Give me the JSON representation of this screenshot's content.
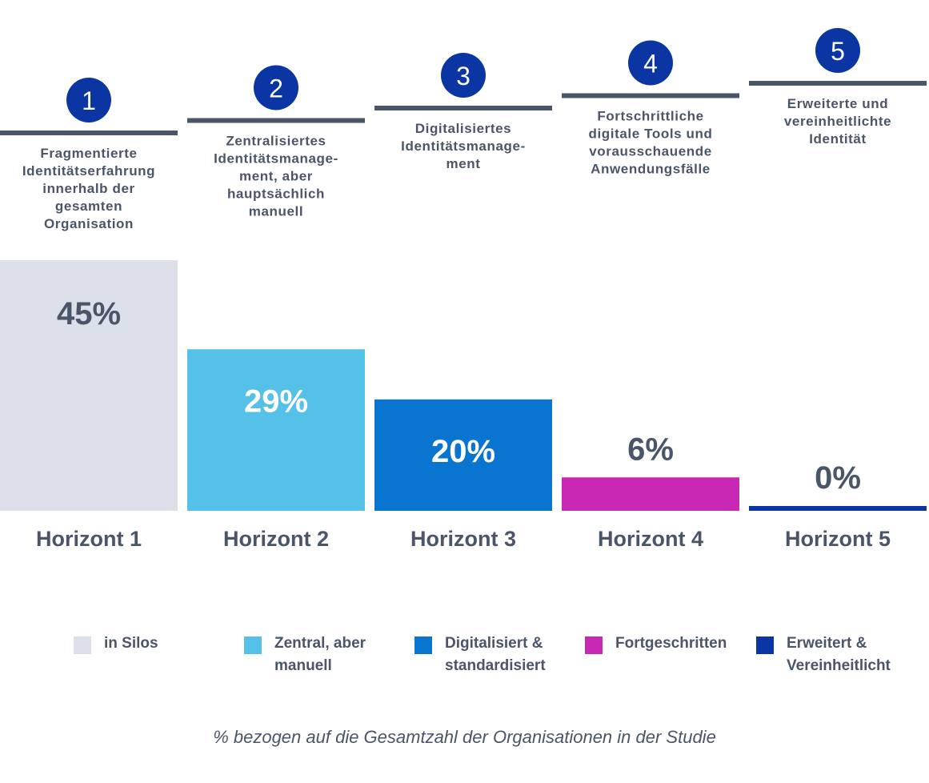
{
  "chart_data": {
    "type": "bar",
    "categories": [
      "Horizont 1",
      "Horizont 2",
      "Horizont 3",
      "Horizont 4",
      "Horizont 5"
    ],
    "values": [
      45,
      29,
      20,
      6,
      0
    ],
    "value_labels": [
      "45%",
      "29%",
      "20%",
      "6%",
      "0%"
    ],
    "ylim": [
      0,
      45
    ],
    "ylabel": "",
    "xlabel": "",
    "steps": [
      {
        "number": "1",
        "description": "Fragmentierte\nIdentitätserfahrung\ninnerhalb der\ngesamten\nOrganisation"
      },
      {
        "number": "2",
        "description": "Zentralisiertes\nIdentitätsmanage-\nment, aber\nhauptsächlich\nmanuell"
      },
      {
        "number": "3",
        "description": "Digitalisiertes\nIdentitätsmanage-\nment"
      },
      {
        "number": "4",
        "description": "Fortschrittliche\ndigitale Tools und\nvorausschauende\nAnwendungsfälle"
      },
      {
        "number": "5",
        "description": "Erweiterte und\nvereinheitlichte\nIdentität"
      }
    ],
    "colors": [
      "#dce1e9",
      "#55c0e8",
      "#0a74d1",
      "#c928b4",
      "#0a35a3"
    ],
    "label_colors": [
      "#4a5568",
      "#ffffff",
      "#ffffff",
      "#4a5568",
      "#4a5568"
    ],
    "legend": [
      {
        "label": "in Silos",
        "color": "#dce1e9"
      },
      {
        "label": "Zentral, aber\nmanuell",
        "color": "#55c0e8"
      },
      {
        "label": "Digitalisiert &\nstandardisiert",
        "color": "#0a74d1"
      },
      {
        "label": "Fortgeschritten",
        "color": "#c928b4"
      },
      {
        "label": "Erweitert &\nVereinheitlicht",
        "color": "#0a35a3"
      }
    ],
    "grid": false
  },
  "footnote": "% bezogen auf die Gesamtzahl der Organisationen in der Studie",
  "colors": {
    "text": "#4a5568",
    "step_line": "#4a5568",
    "step_circle": "#0a35a3"
  }
}
